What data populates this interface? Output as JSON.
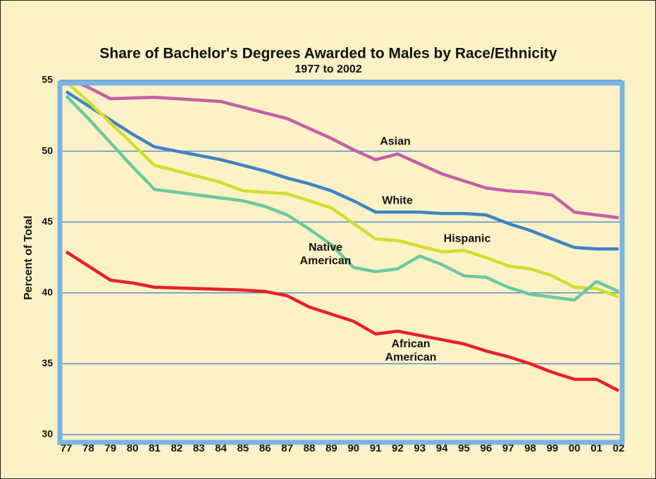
{
  "chart_data": {
    "type": "line",
    "title": "Share of Bachelor's Degrees Awarded to Males by Race/Ethnicity",
    "subtitle": "1977 to 2002",
    "y_label": "Percent of Total",
    "categories": [
      "77",
      "78",
      "79",
      "80",
      "81",
      "82",
      "83",
      "84",
      "85",
      "86",
      "87",
      "88",
      "89",
      "90",
      "91",
      "92",
      "93",
      "94",
      "95",
      "96",
      "97",
      "98",
      "99",
      "00",
      "01",
      "02"
    ],
    "ylim": [
      30,
      55
    ],
    "yticks": [
      30,
      35,
      40,
      45,
      50,
      55
    ],
    "grid": true,
    "series": [
      {
        "name": "Asian",
        "color": "#c45ea8",
        "values": [
          55.2,
          54.5,
          53.7,
          53.75,
          53.8,
          53.7,
          53.6,
          53.5,
          53.1,
          52.7,
          52.3,
          51.6,
          50.9,
          50.1,
          49.4,
          49.8,
          49.1,
          48.4,
          47.9,
          47.4,
          47.2,
          47.1,
          46.9,
          45.7,
          45.5,
          45.3
        ]
      },
      {
        "name": "White",
        "color": "#3f82c6",
        "values": [
          54.2,
          53.2,
          52.2,
          51.2,
          50.3,
          50.0,
          49.7,
          49.4,
          49.0,
          48.6,
          48.1,
          47.7,
          47.2,
          46.5,
          45.7,
          45.7,
          45.7,
          45.6,
          45.6,
          45.5,
          44.9,
          44.4,
          43.8,
          43.2,
          43.1,
          43.1
        ]
      },
      {
        "name": "Hispanic",
        "color": "#d3df2c",
        "values": [
          54.9,
          53.5,
          52.0,
          50.5,
          49.0,
          48.6,
          48.2,
          47.8,
          47.2,
          47.1,
          47.0,
          46.5,
          46.0,
          44.9,
          43.8,
          43.7,
          43.3,
          42.9,
          43.0,
          42.5,
          41.9,
          41.7,
          41.2,
          40.4,
          40.3,
          39.7
        ]
      },
      {
        "name": "Native American",
        "color": "#6cc8a0",
        "values": [
          53.9,
          52.3,
          50.6,
          48.9,
          47.3,
          47.1,
          46.9,
          46.7,
          46.5,
          46.1,
          45.5,
          44.5,
          43.4,
          41.8,
          41.5,
          41.7,
          42.6,
          42.0,
          41.2,
          41.1,
          40.4,
          39.9,
          39.7,
          39.5,
          40.8,
          40.1
        ]
      },
      {
        "name": "African American",
        "color": "#e8202a",
        "values": [
          42.9,
          41.9,
          40.9,
          40.7,
          40.4,
          40.35,
          40.3,
          40.25,
          40.2,
          40.1,
          39.8,
          39.0,
          38.5,
          38.0,
          37.1,
          37.3,
          37.0,
          36.7,
          36.4,
          35.9,
          35.5,
          35.0,
          34.4,
          33.9,
          33.9,
          33.1
        ]
      }
    ]
  }
}
